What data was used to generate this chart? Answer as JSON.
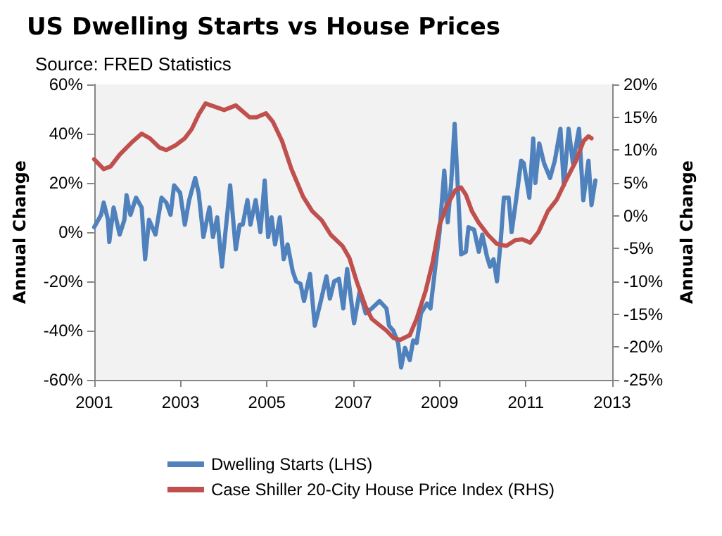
{
  "chart_data": {
    "type": "line",
    "title": "US Dwelling Starts vs House Prices",
    "subtitle": "Source: FRED Statistics",
    "ylabel": "Annual Change",
    "y2label": "Annual Change",
    "xlim": [
      2001,
      2013
    ],
    "xticks": [
      2001,
      2003,
      2005,
      2007,
      2009,
      2011,
      2013
    ],
    "ylim": [
      -60,
      60
    ],
    "yticks": [
      {
        "value": -60,
        "label": "-60%"
      },
      {
        "value": -40,
        "label": "-40%"
      },
      {
        "value": -20,
        "label": "-20%"
      },
      {
        "value": 0,
        "label": "0%"
      },
      {
        "value": 20,
        "label": "20%"
      },
      {
        "value": 40,
        "label": "40%"
      },
      {
        "value": 60,
        "label": "60%"
      }
    ],
    "y2lim": [
      -25,
      20
    ],
    "y2ticks": [
      {
        "value": -25,
        "label": "-25%"
      },
      {
        "value": -20,
        "label": "-20%"
      },
      {
        "value": -15,
        "label": "-15%"
      },
      {
        "value": -10,
        "label": "-10%"
      },
      {
        "value": -5,
        "label": "-5%"
      },
      {
        "value": 0,
        "label": "0%"
      },
      {
        "value": 5,
        "label": "5%"
      },
      {
        "value": 10,
        "label": "10%"
      },
      {
        "value": 15,
        "label": "15%"
      },
      {
        "value": 20,
        "label": "20%"
      }
    ],
    "grid": false,
    "legend": "bottom",
    "marker": "none",
    "line_style": "solid",
    "series": [
      {
        "name": "Dwelling Starts (LHS)",
        "color": "#4f81bd",
        "x": [
          2001.0,
          2001.16,
          2001.22,
          2001.32,
          2001.35,
          2001.45,
          2001.59,
          2001.7,
          2001.75,
          2001.84,
          2001.97,
          2002.1,
          2002.18,
          2002.27,
          2002.42,
          2002.56,
          2002.67,
          2002.77,
          2002.85,
          2002.99,
          2003.1,
          2003.2,
          2003.34,
          2003.42,
          2003.53,
          2003.67,
          2003.75,
          2003.85,
          2003.96,
          2004.15,
          2004.28,
          2004.37,
          2004.44,
          2004.55,
          2004.62,
          2004.74,
          2004.85,
          2004.95,
          2005.03,
          2005.11,
          2005.19,
          2005.3,
          2005.39,
          2005.48,
          2005.6,
          2005.68,
          2005.78,
          2005.86,
          2006.0,
          2006.11,
          2006.25,
          2006.38,
          2006.46,
          2006.56,
          2006.67,
          2006.77,
          2006.86,
          2007.02,
          2007.15,
          2007.29,
          2007.43,
          2007.61,
          2007.77,
          2007.83,
          2007.93,
          2008.04,
          2008.11,
          2008.2,
          2008.31,
          2008.39,
          2008.47,
          2008.57,
          2008.71,
          2008.79,
          2008.89,
          2009.0,
          2009.11,
          2009.19,
          2009.27,
          2009.35,
          2009.43,
          2009.5,
          2009.61,
          2009.67,
          2009.8,
          2009.91,
          2009.99,
          2010.1,
          2010.17,
          2010.25,
          2010.33,
          2010.42,
          2010.49,
          2010.6,
          2010.67,
          2010.78,
          2010.89,
          2010.95,
          2011.08,
          2011.17,
          2011.22,
          2011.31,
          2011.42,
          2011.56,
          2011.67,
          2011.8,
          2011.88,
          2011.99,
          2012.09,
          2012.23,
          2012.33,
          2012.45,
          2012.52,
          2012.61
        ],
        "values": [
          2,
          7,
          12,
          5,
          -4,
          10,
          -1,
          5,
          15,
          7,
          14,
          10,
          -11,
          5,
          -1,
          14,
          12,
          7,
          19,
          16,
          3,
          13,
          22,
          16,
          -2,
          10,
          -2,
          6,
          -14,
          19,
          -7,
          3,
          3,
          13,
          3,
          13,
          0,
          21,
          -2,
          6,
          -5,
          6,
          -11,
          -5,
          -16,
          -20,
          -21,
          -28,
          -17,
          -38,
          -28,
          -18,
          -27,
          -20,
          -19,
          -31,
          -15,
          -37,
          -24,
          -33,
          -31,
          -28,
          -31,
          -38,
          -40,
          -45,
          -55,
          -47,
          -52,
          -44,
          -45,
          -33,
          -29,
          -31,
          -16,
          0,
          25,
          4,
          20,
          44,
          16,
          -9,
          -8,
          2,
          1,
          -8,
          -1,
          -10,
          -14,
          -11,
          -20,
          -3,
          14,
          14,
          0,
          14,
          29,
          28,
          14,
          38,
          20,
          36,
          28,
          22,
          29,
          42,
          19,
          42,
          28,
          42,
          13,
          29,
          11,
          21
        ]
      },
      {
        "name": "Case Shiller 20-City House Price Index (RHS)",
        "color": "#c0504d",
        "axis": "y2",
        "x": [
          2001.0,
          2001.22,
          2001.38,
          2001.59,
          2001.86,
          2002.1,
          2002.29,
          2002.51,
          2002.67,
          2002.88,
          2003.1,
          2003.26,
          2003.42,
          2003.58,
          2004.01,
          2004.28,
          2004.6,
          2004.76,
          2004.98,
          2005.14,
          2005.35,
          2005.57,
          2005.84,
          2006.05,
          2006.27,
          2006.48,
          2006.75,
          2006.91,
          2007.08,
          2007.29,
          2007.43,
          2007.56,
          2007.77,
          2007.93,
          2008.09,
          2008.31,
          2008.47,
          2008.68,
          2008.84,
          2009.0,
          2009.16,
          2009.37,
          2009.5,
          2009.61,
          2009.75,
          2009.91,
          2010.12,
          2010.33,
          2010.55,
          2010.76,
          2010.92,
          2011.1,
          2011.29,
          2011.51,
          2011.72,
          2011.93,
          2012.15,
          2012.34,
          2012.45,
          2012.52
        ],
        "values": [
          8.6,
          7.1,
          7.5,
          9.3,
          11.1,
          12.5,
          11.8,
          10.4,
          10,
          10.7,
          11.8,
          13.2,
          15.4,
          17.1,
          16.1,
          16.8,
          15,
          15,
          15.6,
          14.3,
          11.4,
          7.1,
          2.9,
          0.7,
          -0.7,
          -2.9,
          -4.6,
          -6.4,
          -10,
          -13.9,
          -15.7,
          -16.4,
          -17.5,
          -18.6,
          -18.9,
          -18.2,
          -15.7,
          -11.4,
          -7.1,
          -1.4,
          1.4,
          3.9,
          4.3,
          3.2,
          0.7,
          -1.1,
          -2.9,
          -4.3,
          -4.6,
          -3.7,
          -3.6,
          -4.1,
          -2.5,
          0.7,
          2.5,
          5.4,
          8.2,
          11.4,
          12.1,
          11.8
        ]
      }
    ]
  }
}
